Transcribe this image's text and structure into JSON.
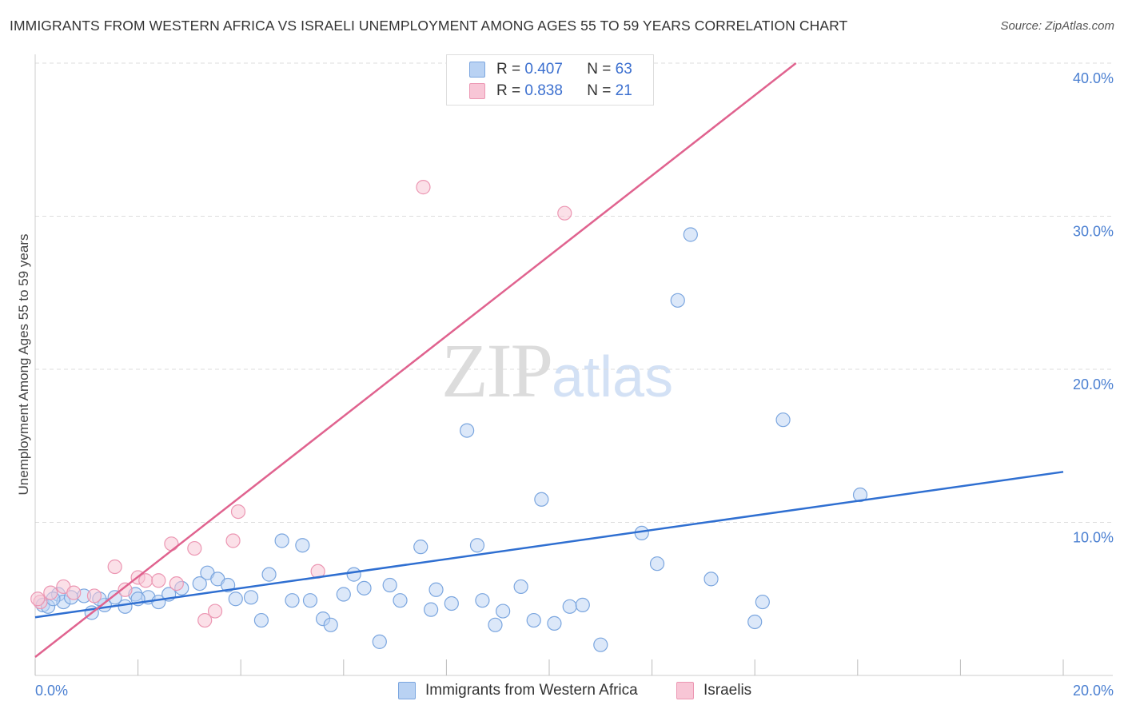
{
  "header": {
    "title": "IMMIGRANTS FROM WESTERN AFRICA VS ISRAELI UNEMPLOYMENT AMONG AGES 55 TO 59 YEARS CORRELATION CHART",
    "source": "Source: ZipAtlas.com"
  },
  "watermark": {
    "zip": "ZIP",
    "atlas": "atlas"
  },
  "legend": {
    "rows": [
      {
        "r_label": "R =",
        "r_value": "0.407",
        "n_label": "N =",
        "n_value": "63"
      },
      {
        "r_label": "R =",
        "r_value": "0.838",
        "n_label": "N =",
        "n_value": "21"
      }
    ]
  },
  "bottom_legend": {
    "series1": "Immigrants from Western Africa",
    "series2": "Israelis"
  },
  "colors": {
    "blue_fill": "#b9d2f3",
    "blue_stroke": "#7ba6df",
    "blue_line": "#2f6fd1",
    "pink_fill": "#f8c6d6",
    "pink_stroke": "#ec97b3",
    "pink_line": "#e0638f",
    "grid": "#dddddd",
    "tick_label": "#4a7fd1"
  },
  "chart_data": {
    "type": "scatter",
    "title": "IMMIGRANTS FROM WESTERN AFRICA VS ISRAELI UNEMPLOYMENT AMONG AGES 55 TO 59 YEARS CORRELATION CHART",
    "xlabel": "",
    "ylabel": "Unemployment Among Ages 55 to 59 years",
    "xlim": [
      0,
      20
    ],
    "ylim": [
      0,
      40
    ],
    "x_tick_labels": [
      "0.0%",
      "20.0%"
    ],
    "y_ticks": [
      10,
      20,
      30,
      40
    ],
    "y_tick_labels": [
      "10.0%",
      "20.0%",
      "30.0%",
      "40.0%"
    ],
    "grid": true,
    "legend_position": "top-center",
    "series": [
      {
        "name": "Immigrants from Western Africa",
        "r": 0.407,
        "n": 63,
        "trend": {
          "x": [
            0,
            20
          ],
          "y": [
            3.8,
            13.3
          ]
        },
        "points": [
          [
            0.15,
            4.6
          ],
          [
            0.25,
            4.5
          ],
          [
            0.45,
            5.3
          ],
          [
            0.55,
            4.8
          ],
          [
            0.7,
            5.1
          ],
          [
            0.95,
            5.2
          ],
          [
            1.1,
            4.1
          ],
          [
            1.35,
            4.6
          ],
          [
            1.55,
            5.1
          ],
          [
            1.75,
            4.5
          ],
          [
            1.95,
            5.3
          ],
          [
            2.2,
            5.1
          ],
          [
            2.4,
            4.8
          ],
          [
            2.6,
            5.3
          ],
          [
            2.85,
            5.7
          ],
          [
            3.2,
            6.0
          ],
          [
            3.35,
            6.7
          ],
          [
            3.55,
            6.3
          ],
          [
            3.75,
            5.9
          ],
          [
            3.9,
            5.0
          ],
          [
            4.2,
            5.1
          ],
          [
            4.4,
            3.6
          ],
          [
            4.55,
            6.6
          ],
          [
            4.8,
            8.8
          ],
          [
            5.0,
            4.9
          ],
          [
            5.2,
            8.5
          ],
          [
            5.35,
            4.9
          ],
          [
            5.6,
            3.7
          ],
          [
            5.75,
            3.3
          ],
          [
            6.0,
            5.3
          ],
          [
            6.2,
            6.6
          ],
          [
            6.4,
            5.7
          ],
          [
            6.7,
            2.2
          ],
          [
            6.9,
            5.9
          ],
          [
            7.1,
            4.9
          ],
          [
            7.5,
            8.4
          ],
          [
            7.7,
            4.3
          ],
          [
            7.8,
            5.6
          ],
          [
            8.1,
            4.7
          ],
          [
            8.4,
            16.0
          ],
          [
            8.6,
            8.5
          ],
          [
            8.7,
            4.9
          ],
          [
            8.95,
            3.3
          ],
          [
            9.1,
            4.2
          ],
          [
            9.45,
            5.8
          ],
          [
            9.7,
            3.6
          ],
          [
            9.85,
            11.5
          ],
          [
            10.1,
            3.4
          ],
          [
            10.4,
            4.5
          ],
          [
            10.65,
            4.6
          ],
          [
            11.0,
            2.0
          ],
          [
            11.8,
            9.3
          ],
          [
            12.1,
            7.3
          ],
          [
            12.5,
            24.5
          ],
          [
            12.75,
            28.8
          ],
          [
            13.15,
            6.3
          ],
          [
            14.0,
            3.5
          ],
          [
            14.15,
            4.8
          ],
          [
            14.55,
            16.7
          ],
          [
            16.05,
            11.8
          ],
          [
            0.35,
            5.0
          ],
          [
            1.25,
            5.0
          ],
          [
            2.0,
            5.0
          ]
        ]
      },
      {
        "name": "Israelis",
        "r": 0.838,
        "n": 21,
        "trend": {
          "x": [
            0,
            14.8
          ],
          "y": [
            1.2,
            40.0
          ]
        },
        "points": [
          [
            0.1,
            4.8
          ],
          [
            0.3,
            5.4
          ],
          [
            0.55,
            5.8
          ],
          [
            0.75,
            5.4
          ],
          [
            1.15,
            5.2
          ],
          [
            1.55,
            7.1
          ],
          [
            1.75,
            5.6
          ],
          [
            2.0,
            6.4
          ],
          [
            2.15,
            6.2
          ],
          [
            2.4,
            6.2
          ],
          [
            2.65,
            8.6
          ],
          [
            2.75,
            6.0
          ],
          [
            3.1,
            8.3
          ],
          [
            3.3,
            3.6
          ],
          [
            3.5,
            4.2
          ],
          [
            3.85,
            8.8
          ],
          [
            3.95,
            10.7
          ],
          [
            5.5,
            6.8
          ],
          [
            7.55,
            31.9
          ],
          [
            10.3,
            30.2
          ],
          [
            0.05,
            5.0
          ]
        ]
      }
    ]
  }
}
